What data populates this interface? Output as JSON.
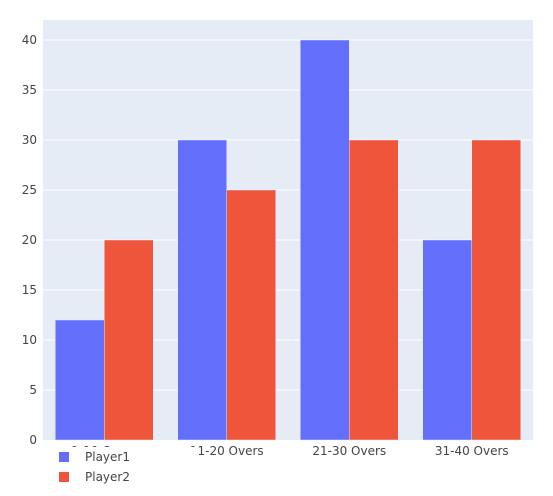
{
  "chart_data": {
    "type": "bar",
    "categories": [
      "1-10 Overs",
      "11-20 Overs",
      "21-30 Overs",
      "31-40 Overs"
    ],
    "series": [
      {
        "name": "Player1",
        "values": [
          12,
          30,
          40,
          20
        ],
        "color": "#636efa"
      },
      {
        "name": "Player2",
        "values": [
          20,
          25,
          30,
          30
        ],
        "color": "#ef553b"
      }
    ],
    "ylim": [
      0,
      42
    ],
    "yticks": [
      0,
      5,
      10,
      15,
      20,
      25,
      30,
      35,
      40
    ],
    "grid": true,
    "legend_position": "bottom-left",
    "plot_background": "#e5ecf6"
  }
}
